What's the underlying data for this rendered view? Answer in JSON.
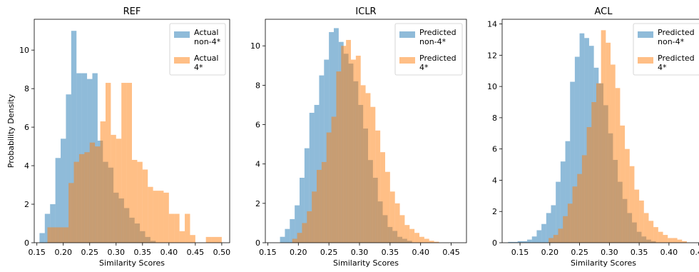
{
  "chart_data": [
    {
      "type": "histogram",
      "title": "REF",
      "xlabel": "Similarity Scores",
      "ylabel": "Probability Density",
      "xlim": [
        0.145,
        0.515
      ],
      "ylim": [
        0,
        11.6
      ],
      "xticks": [
        0.15,
        0.2,
        0.25,
        0.3,
        0.35,
        0.4,
        0.45,
        0.5
      ],
      "xtick_labels": [
        "0.15",
        "0.20",
        "0.25",
        "0.30",
        "0.35",
        "0.40",
        "0.45",
        "0.50"
      ],
      "yticks": [
        0,
        2,
        4,
        6,
        8,
        10
      ],
      "ytick_labels": [
        "0",
        "2",
        "4",
        "6",
        "8",
        "10"
      ],
      "legend_position": "top-right",
      "grid": false,
      "series": [
        {
          "name": "Actual non-4*",
          "legend_lines": [
            "Actual",
            "non-4*"
          ],
          "color": "#1f77b4",
          "bin_edges": [
            0.155,
            0.165,
            0.175,
            0.185,
            0.195,
            0.205,
            0.215,
            0.225,
            0.235,
            0.245,
            0.255,
            0.265,
            0.275,
            0.285,
            0.295,
            0.305,
            0.315,
            0.325,
            0.335,
            0.345,
            0.355,
            0.365,
            0.375
          ],
          "density": [
            0.5,
            1.5,
            2.0,
            4.4,
            5.4,
            7.7,
            11.0,
            8.8,
            8.8,
            8.5,
            8.8,
            5.3,
            4.2,
            3.9,
            2.6,
            2.3,
            1.8,
            1.3,
            1.0,
            0.6,
            0.3,
            0.1
          ]
        },
        {
          "name": "Actual 4*",
          "legend_lines": [
            "Actual",
            "4*"
          ],
          "color": "#ff7f0e",
          "bin_edges": [
            0.17,
            0.18,
            0.19,
            0.2,
            0.21,
            0.22,
            0.23,
            0.24,
            0.25,
            0.26,
            0.27,
            0.28,
            0.29,
            0.3,
            0.31,
            0.32,
            0.33,
            0.34,
            0.35,
            0.36,
            0.37,
            0.38,
            0.39,
            0.4,
            0.41,
            0.42,
            0.43,
            0.44,
            0.45,
            0.46,
            0.47,
            0.48,
            0.49,
            0.5
          ],
          "density": [
            0.8,
            0.8,
            0.8,
            0.8,
            3.1,
            4.2,
            4.6,
            4.7,
            5.2,
            5.0,
            6.3,
            8.3,
            5.6,
            5.4,
            8.3,
            8.3,
            4.3,
            4.2,
            3.8,
            2.9,
            2.7,
            2.7,
            2.6,
            1.5,
            1.5,
            0.6,
            1.5,
            0.4,
            0.0,
            0.0,
            0.3,
            0.3,
            0.3
          ]
        }
      ]
    },
    {
      "type": "histogram",
      "title": "ICLR",
      "xlabel": "Similarity Scores",
      "ylabel": "",
      "xlim": [
        0.146,
        0.475
      ],
      "ylim": [
        0,
        11.35
      ],
      "xticks": [
        0.15,
        0.2,
        0.25,
        0.3,
        0.35,
        0.4,
        0.45
      ],
      "xtick_labels": [
        "0.15",
        "0.20",
        "0.25",
        "0.30",
        "0.35",
        "0.40",
        "0.45"
      ],
      "yticks": [
        0,
        2,
        4,
        6,
        8,
        10
      ],
      "ytick_labels": [
        "0",
        "2",
        "4",
        "6",
        "8",
        "10"
      ],
      "legend_position": "top-right",
      "grid": false,
      "series": [
        {
          "name": "Predicted non-4*",
          "legend_lines": [
            "Predicted",
            "non-4*"
          ],
          "color": "#1f77b4",
          "bin_edges": [
            0.17,
            0.178,
            0.186,
            0.194,
            0.202,
            0.21,
            0.218,
            0.226,
            0.234,
            0.242,
            0.25,
            0.258,
            0.266,
            0.274,
            0.282,
            0.29,
            0.298,
            0.306,
            0.314,
            0.322,
            0.33,
            0.338,
            0.346,
            0.354,
            0.362,
            0.37,
            0.378,
            0.386
          ],
          "density": [
            0.3,
            0.7,
            1.2,
            1.9,
            3.3,
            4.8,
            6.6,
            7.0,
            8.5,
            9.3,
            10.7,
            10.9,
            10.2,
            9.6,
            9.1,
            8.2,
            7.0,
            5.8,
            4.2,
            3.3,
            2.1,
            1.4,
            0.8,
            0.6,
            0.3,
            0.2,
            0.1
          ]
        },
        {
          "name": "Predicted 4*",
          "legend_lines": [
            "Predicted",
            "4*"
          ],
          "color": "#ff7f0e",
          "bin_edges": [
            0.19,
            0.198,
            0.206,
            0.214,
            0.222,
            0.23,
            0.238,
            0.246,
            0.254,
            0.262,
            0.27,
            0.278,
            0.286,
            0.294,
            0.302,
            0.31,
            0.318,
            0.326,
            0.334,
            0.342,
            0.35,
            0.358,
            0.366,
            0.374,
            0.382,
            0.39,
            0.398,
            0.406,
            0.414,
            0.422,
            0.43
          ],
          "density": [
            0.2,
            0.5,
            1.0,
            1.6,
            2.6,
            3.7,
            4.1,
            5.6,
            6.4,
            8.7,
            10.0,
            10.3,
            9.3,
            9.5,
            8.0,
            7.6,
            6.9,
            5.7,
            4.6,
            3.6,
            2.6,
            2.0,
            1.4,
            0.9,
            0.7,
            0.5,
            0.3,
            0.2,
            0.1,
            0.05
          ]
        }
      ]
    },
    {
      "type": "histogram",
      "title": "ACL",
      "xlabel": "Similarity Scores",
      "ylabel": "",
      "xlim": [
        0.12,
        0.46
      ],
      "ylim": [
        0,
        14.3
      ],
      "xticks": [
        0.15,
        0.2,
        0.25,
        0.3,
        0.35,
        0.4,
        0.45
      ],
      "xtick_labels": [
        "0.15",
        "0.20",
        "0.25",
        "0.30",
        "0.35",
        "0.40",
        "0.45"
      ],
      "yticks": [
        0,
        2,
        4,
        6,
        8,
        10,
        12,
        14
      ],
      "ytick_labels": [
        "0",
        "2",
        "4",
        "6",
        "8",
        "10",
        "12",
        "14"
      ],
      "legend_position": "top-right",
      "grid": false,
      "series": [
        {
          "name": "Predicted non-4*",
          "legend_lines": [
            "Predicted",
            "non-4*"
          ],
          "color": "#1f77b4",
          "bin_edges": [
            0.13,
            0.138,
            0.146,
            0.154,
            0.162,
            0.17,
            0.178,
            0.186,
            0.194,
            0.202,
            0.21,
            0.218,
            0.226,
            0.234,
            0.242,
            0.25,
            0.258,
            0.266,
            0.274,
            0.282,
            0.29,
            0.298,
            0.306,
            0.314,
            0.322,
            0.33,
            0.338,
            0.346,
            0.354,
            0.362,
            0.37,
            0.378
          ],
          "density": [
            0.05,
            0.05,
            0.1,
            0.1,
            0.2,
            0.4,
            0.8,
            1.2,
            1.9,
            2.4,
            3.9,
            5.2,
            6.5,
            10.3,
            11.9,
            13.4,
            13.1,
            12.6,
            11.2,
            10.2,
            8.8,
            7.0,
            5.3,
            3.9,
            2.8,
            1.9,
            1.3,
            0.7,
            0.4,
            0.2,
            0.1
          ]
        },
        {
          "name": "Predicted 4*",
          "legend_lines": [
            "Predicted",
            "4*"
          ],
          "color": "#ff7f0e",
          "bin_edges": [
            0.198,
            0.206,
            0.214,
            0.222,
            0.23,
            0.238,
            0.246,
            0.254,
            0.262,
            0.27,
            0.278,
            0.286,
            0.294,
            0.302,
            0.31,
            0.318,
            0.326,
            0.334,
            0.342,
            0.35,
            0.358,
            0.366,
            0.374,
            0.382,
            0.39,
            0.398,
            0.406,
            0.414,
            0.422,
            0.43
          ],
          "density": [
            0.3,
            0.5,
            0.9,
            1.7,
            2.5,
            3.6,
            4.4,
            5.6,
            7.4,
            9.0,
            10.2,
            13.6,
            12.8,
            11.4,
            9.9,
            7.5,
            6.0,
            4.9,
            3.4,
            2.7,
            1.9,
            1.4,
            1.0,
            0.7,
            0.5,
            0.3,
            0.3,
            0.2,
            0.1
          ]
        }
      ]
    }
  ]
}
